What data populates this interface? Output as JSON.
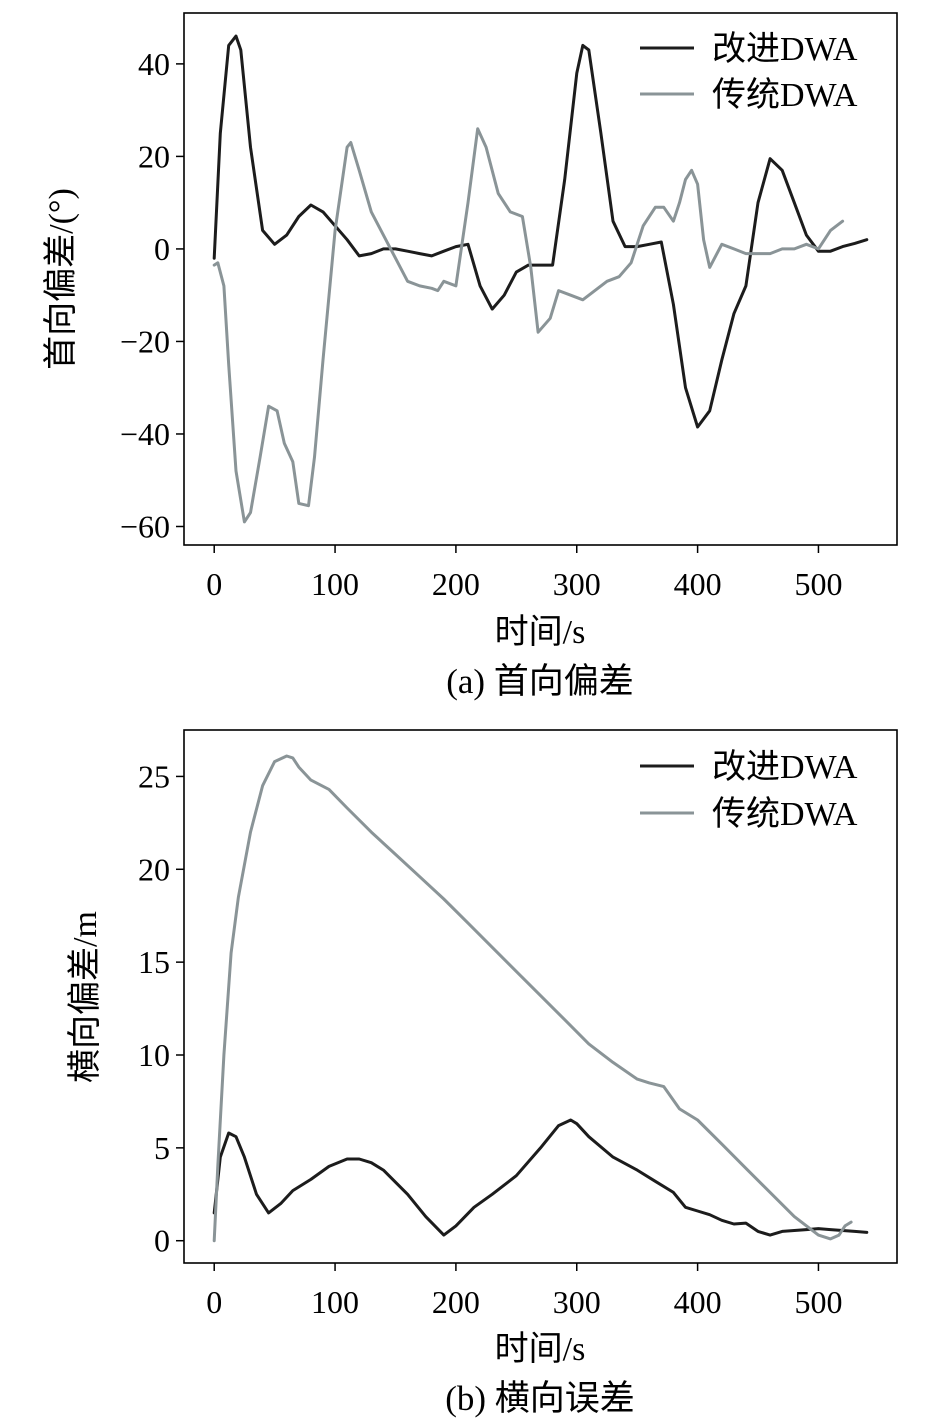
{
  "colors": {
    "improved": "#1c1c1c",
    "traditional": "#8a9497",
    "axis": "#000000"
  },
  "chart_data": [
    {
      "type": "line",
      "caption": "(a) 首向偏差",
      "xlabel": "时间/s",
      "ylabel": "首向偏差/(°)",
      "xlim": [
        -25,
        565
      ],
      "ylim": [
        -64,
        51
      ],
      "xticks": [
        0,
        100,
        200,
        300,
        400,
        500
      ],
      "xtick_labels": [
        "0",
        "100",
        "200",
        "300",
        "400",
        "500"
      ],
      "yticks": [
        40,
        20,
        0,
        -20,
        -40,
        -60
      ],
      "ytick_labels": [
        "40",
        "20",
        "0",
        "−20",
        "−40",
        "−60"
      ],
      "legend_position": "top-right",
      "series": [
        {
          "name": "改进DWA",
          "color": "#1c1c1c",
          "x": [
            0,
            5,
            12,
            18,
            22,
            30,
            40,
            50,
            60,
            70,
            80,
            90,
            100,
            110,
            120,
            130,
            140,
            150,
            160,
            170,
            180,
            190,
            200,
            210,
            220,
            230,
            240,
            250,
            260,
            270,
            280,
            290,
            300,
            305,
            310,
            320,
            330,
            340,
            350,
            360,
            370,
            380,
            390,
            400,
            410,
            420,
            430,
            440,
            450,
            460,
            470,
            480,
            490,
            500,
            510,
            520,
            530,
            540
          ],
          "y": [
            -2,
            25,
            44,
            46,
            43,
            22,
            4,
            1,
            3,
            7,
            9.5,
            8,
            5,
            2,
            -1.5,
            -1,
            0,
            0,
            -0.5,
            -1,
            -1.5,
            -0.5,
            0.5,
            1,
            -8,
            -13,
            -10,
            -5,
            -3.5,
            -3.5,
            -3.5,
            15,
            38,
            44,
            43,
            25,
            6,
            0.5,
            0.5,
            1,
            1.5,
            -12,
            -30,
            -38.5,
            -35,
            -24,
            -14,
            -8,
            10,
            19.5,
            17,
            10,
            3,
            -0.5,
            -0.5,
            0.5,
            1.2,
            2
          ]
        },
        {
          "name": "传统DWA",
          "color": "#8a9497",
          "x": [
            0,
            3,
            8,
            12,
            18,
            25,
            30,
            38,
            45,
            52,
            58,
            65,
            70,
            78,
            83,
            90,
            100,
            110,
            113,
            120,
            130,
            140,
            150,
            160,
            170,
            180,
            185,
            190,
            200,
            210,
            218,
            225,
            235,
            245,
            255,
            262,
            268,
            278,
            285,
            295,
            305,
            315,
            325,
            335,
            345,
            355,
            365,
            372,
            380,
            385,
            390,
            395,
            400,
            405,
            410,
            420,
            430,
            440,
            450,
            460,
            470,
            480,
            490,
            500,
            510,
            520
          ],
          "y": [
            -3.5,
            -3,
            -8,
            -25,
            -48,
            -59,
            -57,
            -45,
            -34,
            -35,
            -42,
            -46,
            -55,
            -55.5,
            -45,
            -24,
            4,
            22,
            23,
            17,
            8,
            3,
            -2,
            -7,
            -8,
            -8.5,
            -9,
            -7,
            -8,
            10,
            26,
            22,
            12,
            8,
            7,
            -4,
            -18,
            -15,
            -9,
            -10,
            -11,
            -9,
            -7,
            -6,
            -3,
            5,
            9,
            9,
            6,
            10,
            15,
            17,
            14,
            2,
            -4,
            1,
            0,
            -1,
            -1,
            -1,
            0,
            0,
            1,
            0,
            4,
            6
          ]
        }
      ]
    },
    {
      "type": "line",
      "caption": "(b) 横向误差",
      "xlabel": "时间/s",
      "ylabel": "横向偏差/m",
      "xlim": [
        -25,
        565
      ],
      "ylim": [
        -1.2,
        27.5
      ],
      "xticks": [
        0,
        100,
        200,
        300,
        400,
        500
      ],
      "xtick_labels": [
        "0",
        "100",
        "200",
        "300",
        "400",
        "500"
      ],
      "yticks": [
        25,
        20,
        15,
        10,
        5,
        0
      ],
      "ytick_labels": [
        "25",
        "20",
        "15",
        "10",
        "5",
        "0"
      ],
      "legend_position": "top-right",
      "series": [
        {
          "name": "改进DWA",
          "color": "#1c1c1c",
          "x": [
            0,
            5,
            12,
            18,
            25,
            35,
            45,
            55,
            65,
            80,
            95,
            110,
            120,
            130,
            140,
            160,
            175,
            190,
            200,
            215,
            230,
            250,
            270,
            285,
            295,
            300,
            310,
            330,
            350,
            365,
            380,
            390,
            400,
            410,
            420,
            430,
            440,
            450,
            460,
            470,
            480,
            490,
            500,
            510,
            520,
            530,
            540
          ],
          "y": [
            1.5,
            4.5,
            5.8,
            5.6,
            4.5,
            2.5,
            1.5,
            2,
            2.7,
            3.3,
            4,
            4.4,
            4.4,
            4.2,
            3.8,
            2.5,
            1.3,
            0.3,
            0.8,
            1.8,
            2.5,
            3.5,
            5,
            6.2,
            6.5,
            6.3,
            5.6,
            4.5,
            3.8,
            3.2,
            2.6,
            1.8,
            1.6,
            1.4,
            1.1,
            0.9,
            0.95,
            0.5,
            0.3,
            0.5,
            0.55,
            0.6,
            0.65,
            0.6,
            0.55,
            0.5,
            0.45
          ]
        },
        {
          "name": "传统DWA",
          "color": "#8a9497",
          "x": [
            0,
            3,
            8,
            14,
            20,
            30,
            40,
            50,
            60,
            65,
            70,
            80,
            95,
            110,
            130,
            150,
            170,
            190,
            210,
            230,
            250,
            270,
            290,
            310,
            330,
            350,
            360,
            372,
            385,
            400,
            420,
            440,
            460,
            480,
            500,
            510,
            517,
            522,
            527
          ],
          "y": [
            0,
            4,
            10,
            15.5,
            18.5,
            22,
            24.5,
            25.8,
            26.1,
            26,
            25.5,
            24.8,
            24.3,
            23.3,
            22,
            20.8,
            19.6,
            18.4,
            17.1,
            15.8,
            14.5,
            13.2,
            11.9,
            10.6,
            9.6,
            8.7,
            8.5,
            8.3,
            7.1,
            6.5,
            5.2,
            3.9,
            2.6,
            1.3,
            0.3,
            0.1,
            0.3,
            0.8,
            1
          ]
        }
      ]
    }
  ]
}
